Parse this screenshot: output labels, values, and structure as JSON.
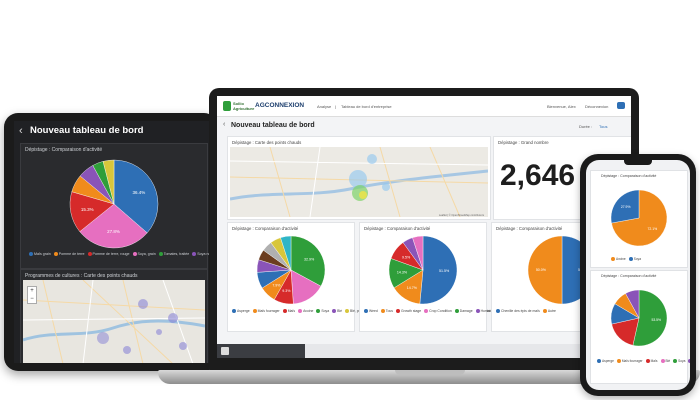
{
  "tablet": {
    "back_icon": "chevron-left-icon",
    "title": "Nouveau tableau de bord",
    "pie_card": {
      "title": "Dépistage : Comparaison d'activité",
      "slices": [
        {
          "name": "Maïs grain",
          "value": 36.4,
          "label": "36.4%",
          "color": "#2e6fb5"
        },
        {
          "name": "Soya, grain",
          "value": 27.8,
          "label": "27.8%",
          "color": "#e66fc0"
        },
        {
          "name": "Pomme de terre, rouge",
          "value": 15.3,
          "label": "15.3%",
          "color": "#d62a2a"
        },
        {
          "name": "Pomme de terre",
          "value": 6.5,
          "label": "",
          "color": "#f08b1c"
        },
        {
          "name": "Soya non OGM",
          "value": 6.0,
          "label": "",
          "color": "#8a54b8"
        },
        {
          "name": "Tomates, traitée",
          "value": 4.0,
          "label": "",
          "color": "#2f9e3a"
        },
        {
          "name": "Autre",
          "value": 4.0,
          "label": "",
          "color": "#d8c63b"
        }
      ],
      "legend": [
        "Maïs grain",
        "Pomme de terre",
        "Pomme de terre, rouge",
        "Soya, grain",
        "Tomates, traitée",
        "Soya non OGM"
      ]
    },
    "map_card": {
      "title": "Programmes de cultures : Carte des points chauds",
      "zoom_in": "+",
      "zoom_out": "−"
    }
  },
  "laptop": {
    "brand_text": "Sollio\nAgriculture",
    "partner_logo": "AGCONNEXION",
    "breadcrumb": {
      "part1": "Analyse",
      "separator": "|",
      "part2": "Tableau de bord d'entreprise"
    },
    "user": "Bienvenue, Alex",
    "logout": "Déconnexion",
    "chat_icon": "chat-icon",
    "dashboard_title": "Nouveau tableau de bord",
    "duration_label": "Durée :",
    "duration_value": "Tous",
    "map_card": {
      "title": "Dépistage : Carte des points chauds",
      "attribution": "Leaflet | © OpenStreetMap contributors"
    },
    "number_card": {
      "title": "Dépistage : Grand nombre",
      "value": "2,646"
    },
    "pie1": {
      "title": "Dépistage : Comparaison d'activité",
      "slices": [
        {
          "name": "Soya",
          "value": 32.9,
          "label": "32.9%",
          "color": "#2f9e3a"
        },
        {
          "name": "Blé",
          "value": 16.0,
          "label": "",
          "color": "#e66fc0"
        },
        {
          "name": "Maïs fourrager",
          "value": 9.3,
          "label": "9.3%",
          "color": "#d62a2a"
        },
        {
          "name": "Maïs grain",
          "value": 7.9,
          "label": "7.9%",
          "color": "#f08b1c"
        },
        {
          "name": "Autre",
          "value": 7.8,
          "label": "",
          "color": "#2e6fb5"
        },
        {
          "name": "Maïs sucré",
          "value": 6.0,
          "label": "",
          "color": "#8a54b8"
        },
        {
          "name": "Avoine",
          "value": 5.0,
          "label": "",
          "color": "#6b3d1f"
        },
        {
          "name": "Orge",
          "value": 5.0,
          "label": "",
          "color": "#b0b0b0"
        },
        {
          "name": "Soya grain",
          "value": 5.1,
          "label": "",
          "color": "#d8c63b"
        },
        {
          "name": "Soya, soja",
          "value": 5.0,
          "label": "",
          "color": "#2fb5c6"
        }
      ],
      "legend": [
        "Asperge",
        "Maïs fourrager",
        "Maïs",
        "Avoine",
        "Soya",
        "Blé",
        "Blé, printemps, tout",
        "Maïs grain",
        "Maïs sucré",
        "Blé, printemps, tout",
        "Soya, grain",
        "autre"
      ]
    },
    "pie2": {
      "title": "Dépistage : Comparaison d'activité",
      "slices": [
        {
          "name": "Weed",
          "value": 51.5,
          "label": "51.5%",
          "color": "#2e6fb5"
        },
        {
          "name": "Tous",
          "value": 14.7,
          "label": "14.7%",
          "color": "#f08b1c"
        },
        {
          "name": "Growth stage",
          "value": 14.3,
          "label": "14.3%",
          "color": "#2f9e3a"
        },
        {
          "name": "Crop Condition",
          "value": 9.5,
          "label": "9.5%",
          "color": "#d62a2a"
        },
        {
          "name": "Disease",
          "value": 5.0,
          "label": "",
          "color": "#8a54b8"
        },
        {
          "name": "Autre",
          "value": 5.0,
          "label": "",
          "color": "#e66fc0"
        }
      ],
      "legend": [
        "Weed",
        "Tous",
        "Growth stage",
        "Crop Condition",
        "Damage",
        "Humain (Nématodes)",
        "Disease",
        "Stand Height",
        "Crop Height",
        "Insecte",
        "Autre"
      ]
    },
    "pie3": {
      "title": "Dépistage : Comparaison d'activité",
      "slices": [
        {
          "name": "Chenille des épis de maïs",
          "value": 50.0,
          "label": "50.0%",
          "color": "#2e6fb5"
        },
        {
          "name": "Autre",
          "value": 50.0,
          "label": "50.0%",
          "color": "#f08b1c"
        }
      ],
      "legend": [
        "Chenille des épis de maïs",
        "Autre"
      ]
    },
    "tab_icon": "dashboard-icon"
  },
  "phone": {
    "card1": {
      "title": "Dépistage : Comparaison d'activité",
      "slices": [
        {
          "name": "Avoine",
          "value": 72.1,
          "label": "72.1%",
          "color": "#f08b1c"
        },
        {
          "name": "Soya",
          "value": 27.9,
          "label": "27.9%",
          "color": "#2e6fb5"
        }
      ],
      "legend": [
        "Avoine",
        "Soya"
      ]
    },
    "card2": {
      "title": "Dépistage : Comparaison d'activité",
      "slices": [
        {
          "name": "Soya",
          "value": 53.5,
          "label": "53.5%",
          "color": "#2f9e3a"
        },
        {
          "name": "Maïs",
          "value": 18.0,
          "label": "",
          "color": "#d62a2a"
        },
        {
          "name": "Blé",
          "value": 12.0,
          "label": "",
          "color": "#2e6fb5"
        },
        {
          "name": "Avoine",
          "value": 8.5,
          "label": "",
          "color": "#f08b1c"
        },
        {
          "name": "Autre",
          "value": 8.0,
          "label": "",
          "color": "#8a54b8"
        }
      ],
      "legend": [
        "Asperge",
        "Maïs fourrager",
        "Maïs",
        "Blé",
        "Soya",
        "Avoine",
        "Orge",
        "Maïs sucré"
      ]
    }
  }
}
